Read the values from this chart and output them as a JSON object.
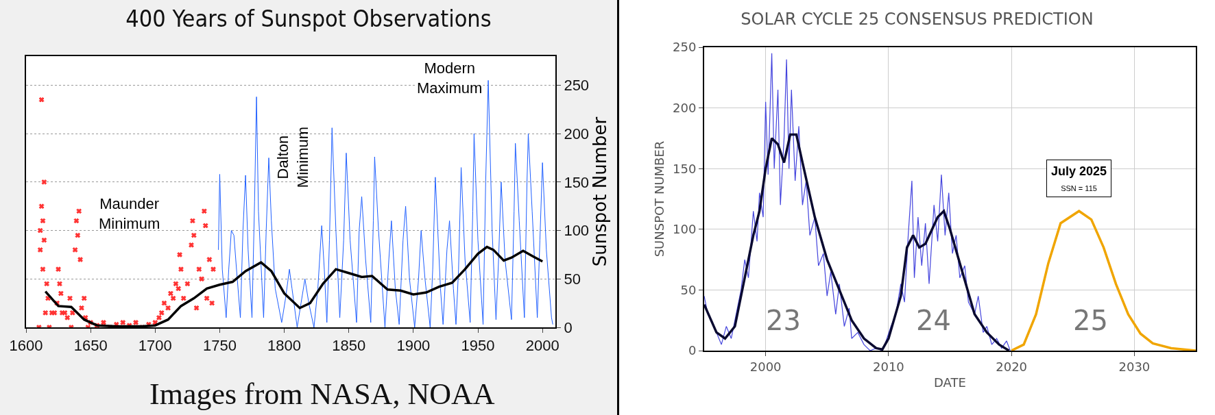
{
  "chart_data": [
    {
      "type": "line",
      "title": "400 Years of Sunspot Observations",
      "ylabel": "Sunspot Number",
      "xlim": [
        1600,
        2010
      ],
      "xticks": [
        1600,
        1650,
        1700,
        1750,
        1800,
        1850,
        1900,
        1950,
        2000
      ],
      "ylim": [
        0,
        280
      ],
      "yticks": [
        0,
        50,
        100,
        150,
        200,
        250
      ],
      "grid": "y",
      "annotations": [
        "Maunder Minimum",
        "Dalton Minimum",
        "Modern Maximum",
        "Images from NASA, NOAA"
      ],
      "series": [
        {
          "type": "scatter",
          "marker": "cross",
          "color": "#ff3333",
          "x": [
            1610,
            1611,
            1611,
            1612,
            1612,
            1613,
            1613,
            1614,
            1614,
            1615,
            1616,
            1617,
            1618,
            1620,
            1622,
            1624,
            1625,
            1626,
            1627,
            1628,
            1630,
            1632,
            1634,
            1635,
            1636,
            1638,
            1639,
            1640,
            1641,
            1642,
            1643,
            1645,
            1646,
            1648,
            1650,
            1655,
            1660,
            1665,
            1670,
            1675,
            1680,
            1685,
            1690,
            1695,
            1700,
            1703,
            1705,
            1707,
            1710,
            1712,
            1714,
            1716,
            1718,
            1719,
            1720,
            1722,
            1725,
            1728,
            1729,
            1730,
            1732,
            1734,
            1736,
            1738,
            1739,
            1740,
            1742,
            1744,
            1745
          ],
          "values": [
            0,
            100,
            80,
            125,
            235,
            110,
            60,
            90,
            150,
            15,
            45,
            30,
            0,
            15,
            15,
            25,
            60,
            45,
            35,
            15,
            15,
            10,
            30,
            0,
            15,
            80,
            110,
            95,
            120,
            70,
            20,
            30,
            10,
            0,
            5,
            2,
            5,
            0,
            3,
            5,
            2,
            5,
            0,
            3,
            5,
            10,
            15,
            25,
            20,
            35,
            30,
            45,
            40,
            75,
            60,
            30,
            45,
            85,
            110,
            95,
            20,
            60,
            50,
            120,
            105,
            30,
            70,
            25,
            60
          ]
        },
        {
          "type": "line",
          "color": "#1f5fff",
          "x": [
            1749,
            1750,
            1752,
            1755,
            1757,
            1759,
            1761,
            1763,
            1766,
            1768,
            1770,
            1772,
            1775,
            1777,
            1778.5,
            1780,
            1784,
            1786,
            1788,
            1790,
            1793,
            1798,
            1801,
            1804,
            1806,
            1810,
            1813,
            1816,
            1819,
            1823,
            1826,
            1829,
            1831,
            1833,
            1835,
            1837,
            1840,
            1843,
            1846,
            1848,
            1851,
            1856,
            1858,
            1860,
            1863,
            1867,
            1869,
            1870,
            1873,
            1878,
            1881,
            1883,
            1886,
            1889,
            1892,
            1894,
            1897,
            1901,
            1904,
            1906,
            1909,
            1913,
            1915,
            1917,
            1921,
            1923,
            1926,
            1928,
            1931,
            1933,
            1935,
            1937,
            1940,
            1944,
            1946,
            1947,
            1950,
            1954,
            1956,
            1958,
            1961,
            1964,
            1966,
            1968,
            1971,
            1976,
            1978,
            1979,
            1982,
            1986,
            1988,
            1989,
            1992,
            1996,
            1998,
            2000,
            2003,
            2007,
            2008
          ],
          "values": [
            80,
            158,
            60,
            10,
            60,
            100,
            95,
            60,
            10,
            100,
            157,
            80,
            10,
            130,
            238,
            120,
            10,
            100,
            175,
            110,
            40,
            5,
            30,
            60,
            40,
            0,
            25,
            50,
            25,
            0,
            40,
            105,
            60,
            5,
            90,
            206,
            100,
            10,
            90,
            180,
            90,
            5,
            100,
            135,
            70,
            5,
            110,
            176,
            100,
            0,
            70,
            110,
            40,
            3,
            90,
            125,
            50,
            0,
            50,
            100,
            50,
            0,
            60,
            155,
            40,
            3,
            80,
            110,
            40,
            3,
            60,
            165,
            70,
            5,
            120,
            200,
            90,
            3,
            150,
            255,
            100,
            8,
            70,
            150,
            70,
            8,
            120,
            190,
            110,
            10,
            150,
            200,
            120,
            10,
            90,
            170,
            80,
            10,
            3
          ]
        },
        {
          "type": "line",
          "color": "#000000",
          "x": [
            1615,
            1625,
            1635,
            1645,
            1655,
            1670,
            1690,
            1700,
            1710,
            1720,
            1730,
            1740,
            1750,
            1760,
            1770,
            1782,
            1790,
            1800,
            1812,
            1820,
            1830,
            1840,
            1850,
            1860,
            1868,
            1880,
            1890,
            1900,
            1910,
            1920,
            1930,
            1940,
            1950,
            1957,
            1962,
            1970,
            1976,
            1985,
            1993,
            2000
          ],
          "values": [
            37,
            22,
            21,
            8,
            2,
            1,
            1,
            2,
            8,
            22,
            30,
            40,
            44,
            47,
            58,
            67,
            58,
            35,
            20,
            25,
            45,
            60,
            56,
            52,
            53,
            39,
            38,
            34,
            36,
            42,
            46,
            60,
            76,
            83,
            80,
            69,
            72,
            79,
            73,
            68
          ]
        }
      ]
    },
    {
      "type": "line",
      "title": "SOLAR CYCLE 25 CONSENSUS PREDICTION",
      "xlabel": "DATE",
      "ylabel": "SUNSPOT NUMBER",
      "xlim": [
        1995,
        2035
      ],
      "xticks": [
        2000,
        2010,
        2020,
        2030
      ],
      "ylim": [
        0,
        250
      ],
      "yticks": [
        0,
        50,
        100,
        150,
        200,
        250
      ],
      "grid": true,
      "annotations": [
        "23",
        "24",
        "25",
        {
          "text": "July 2025\nSSN = 115",
          "x": 2025.5,
          "y": 115
        }
      ],
      "series": [
        {
          "color": "#4444dd",
          "x": [
            1995,
            1995.3,
            1995.6,
            1996,
            1996.4,
            1996.8,
            1997.2,
            1997.6,
            1998,
            1998.3,
            1998.6,
            1999,
            1999.3,
            1999.5,
            1999.8,
            2000,
            2000.2,
            2000.5,
            2000.7,
            2001,
            2001.2,
            2001.5,
            2001.7,
            2001.9,
            2002.1,
            2002.4,
            2002.7,
            2003,
            2003.3,
            2003.6,
            2004,
            2004.3,
            2004.7,
            2005,
            2005.3,
            2005.7,
            2006,
            2006.4,
            2006.8,
            2007,
            2007.5,
            2008,
            2008.5,
            2009,
            2009.5,
            2009.8,
            2010.2,
            2010.6,
            2011,
            2011.3,
            2011.6,
            2011.9,
            2012.1,
            2012.4,
            2012.7,
            2013,
            2013.3,
            2013.7,
            2014,
            2014.3,
            2014.6,
            2014.9,
            2015.2,
            2015.5,
            2015.8,
            2016.2,
            2016.5,
            2017,
            2017.3,
            2017.7,
            2018,
            2018.4,
            2018.8,
            2019.2,
            2019.6,
            2019.9
          ],
          "values": [
            45,
            30,
            25,
            15,
            5,
            20,
            10,
            30,
            50,
            75,
            60,
            115,
            90,
            130,
            110,
            205,
            145,
            245,
            150,
            215,
            120,
            175,
            240,
            150,
            215,
            140,
            185,
            120,
            140,
            95,
            110,
            70,
            80,
            45,
            65,
            30,
            55,
            20,
            35,
            10,
            15,
            5,
            0,
            2,
            0,
            8,
            20,
            30,
            55,
            40,
            95,
            140,
            60,
            110,
            70,
            105,
            55,
            120,
            90,
            145,
            95,
            130,
            80,
            95,
            60,
            70,
            40,
            30,
            45,
            15,
            20,
            5,
            10,
            2,
            8,
            0
          ]
        },
        {
          "color": "#0a0a30",
          "x": [
            1995,
            1996,
            1996.7,
            1997.5,
            1998,
            1999,
            1999.5,
            2000,
            2000.5,
            2001,
            2001.5,
            2002,
            2002.5,
            2003,
            2004,
            2005,
            2006,
            2007,
            2008,
            2009,
            2009.5,
            2010,
            2011,
            2011.5,
            2012,
            2012.5,
            2013,
            2014,
            2014.5,
            2015,
            2016,
            2017,
            2018,
            2019,
            2019.8
          ],
          "values": [
            38,
            15,
            10,
            20,
            45,
            95,
            115,
            150,
            175,
            170,
            155,
            178,
            178,
            155,
            110,
            75,
            50,
            25,
            10,
            2,
            1,
            10,
            45,
            85,
            95,
            85,
            88,
            110,
            115,
            100,
            65,
            30,
            15,
            5,
            0
          ]
        },
        {
          "color": "#f0a500",
          "x": [
            2020,
            2021,
            2022,
            2023,
            2024,
            2025.5,
            2026.5,
            2027.5,
            2028.5,
            2029.5,
            2030.5,
            2031.5,
            2033,
            2035
          ],
          "values": [
            0,
            5,
            30,
            72,
            105,
            115,
            108,
            85,
            55,
            30,
            14,
            6,
            2,
            0
          ]
        }
      ]
    }
  ]
}
